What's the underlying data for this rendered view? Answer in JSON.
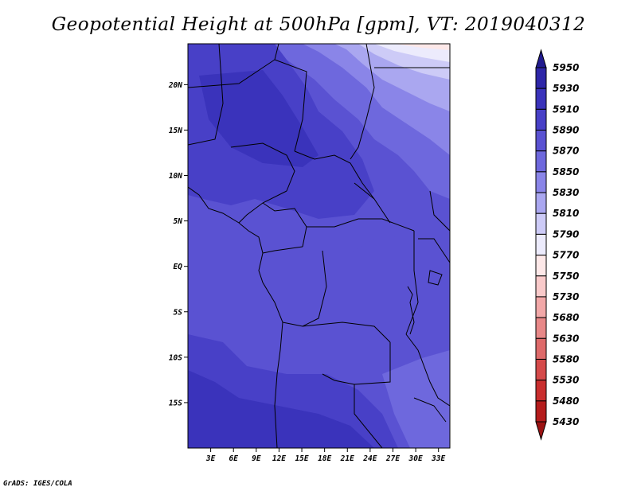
{
  "title": "Geopotential Height at 500hPa [gpm], VT: 2019040312",
  "credit": "GrADS: IGES/COLA",
  "map": {
    "lon_range": [
      0,
      34.5
    ],
    "lat_range": [
      -20,
      24.5
    ],
    "x_ticks": [
      "3E",
      "6E",
      "9E",
      "12E",
      "15E",
      "18E",
      "21E",
      "24E",
      "27E",
      "30E",
      "33E"
    ],
    "y_ticks": [
      "20N",
      "15N",
      "10N",
      "5N",
      "EQ",
      "5S",
      "10S",
      "15S"
    ]
  },
  "colorbar": {
    "levels": [
      "5950",
      "5930",
      "5910",
      "5890",
      "5870",
      "5850",
      "5830",
      "5810",
      "5790",
      "5770",
      "5750",
      "5730",
      "5680",
      "5630",
      "5580",
      "5530",
      "5480",
      "5430"
    ],
    "colors": [
      "#211b8f",
      "#2e26a8",
      "#3a33bb",
      "#4840c7",
      "#5a52d2",
      "#6e68dd",
      "#8a85e8",
      "#aaa7f0",
      "#cdcbf7",
      "#ecebfc",
      "#fde8e8",
      "#f9caca",
      "#f2a8a8",
      "#e88888",
      "#de6a6a",
      "#d54a4a",
      "#c92e2e",
      "#b51c1c",
      "#9c1212"
    ]
  }
}
